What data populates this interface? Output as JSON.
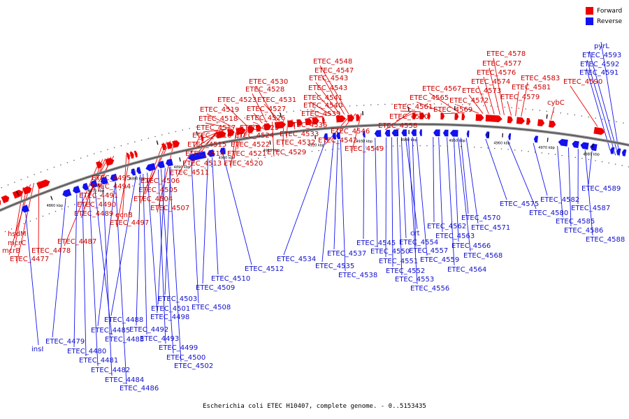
{
  "caption": "Escherichia coli ETEC H10407, complete genome. - 0..5153435",
  "legend": [
    {
      "label": "Forward",
      "color": "#ee0000"
    },
    {
      "label": "Reverse",
      "color": "#1212ee"
    }
  ],
  "ticks": [
    "4860 kbp",
    "4870 kbp",
    "4880 kbp",
    "4890 kbp",
    "4900 kbp",
    "4910 kbp",
    "4920 kbp",
    "4930 kbp",
    "4940 kbp",
    "4950 kbp",
    "4960 kbp",
    "4970 kbp",
    "4980 kbp"
  ],
  "forward_labels": [
    "hsdM",
    "mcrC",
    "mcrB",
    "ETEC_4477",
    "ETEC_4478",
    "ETEC_4487",
    "ETEC_4489",
    "ETEC_4490",
    "ETEC_4491",
    "ETEC_4494",
    "ETEC_4495",
    "ecnB",
    "ETEC_4497",
    "ETEC_4504",
    "ETEC_4505",
    "ETEC_4506",
    "ETEC_4507",
    "ETEC_4511",
    "ETEC_4513",
    "ETEC_4514",
    "ETEC_4515",
    "ETEC_4516",
    "ETEC_4517",
    "ETEC_4518",
    "ETEC_4519",
    "ETEC_4520",
    "ETEC_4521",
    "ETEC_4522",
    "ETEC_4523",
    "ETEC_4524",
    "ETEC_4525",
    "ETEC_4526",
    "ETEC_4527",
    "ETEC_4528",
    "ETEC_4529",
    "ETEC_4530",
    "ETEC_4531",
    "ETEC_4532",
    "ETEC_4533",
    "ETEC_4536",
    "ETEC_4539",
    "ETEC_4540",
    "ETEC_4541",
    "ETEC_4543",
    "ETEC_4543",
    "ETEC_4547",
    "ETEC_4548",
    "ETEC_4542",
    "ETEC_4546",
    "ETEC_4549",
    "ETEC_4558",
    "ETEC_4560",
    "ETEC_4561",
    "ETEC_4565",
    "ETEC_4567",
    "ETEC_4569",
    "ETEC_4572",
    "ETEC_4573",
    "ETEC_4574",
    "ETEC_4576",
    "ETEC_4577",
    "ETEC_4578",
    "ETEC_4579",
    "ETEC_4581",
    "ETEC_4583",
    "cybC",
    "ETEC_4590"
  ],
  "reverse_labels": [
    "insI",
    "ETEC_4479",
    "ETEC_4480",
    "ETEC_4481",
    "ETEC_4482",
    "ETEC_4483",
    "ETEC_4484",
    "ETEC_4485",
    "ETEC_4486",
    "ETEC_4488",
    "ETEC_4492",
    "ETEC_4493",
    "ETEC_4498",
    "ETEC_4499",
    "ETEC_4500",
    "ETEC_4501",
    "ETEC_4502",
    "ETEC_4503",
    "ETEC_4508",
    "ETEC_4509",
    "ETEC_4510",
    "ETEC_4512",
    "ETEC_4534",
    "ETEC_4535",
    "ETEC_4537",
    "ETEC_4538",
    "ETEC_4545",
    "ETEC_4550",
    "ETEC_4551",
    "ETEC_4552",
    "ETEC_4553",
    "ETEC_4554",
    "crt",
    "ETEC_4556",
    "ETEC_4557",
    "ETEC_4559",
    "ETEC_4562",
    "ETEC_4563",
    "ETEC_4564",
    "ETEC_4566",
    "ETEC_4568",
    "ETEC_4570",
    "ETEC_4571",
    "ETEC_4575",
    "ETEC_4580",
    "ETEC_4582",
    "ETEC_4585",
    "ETEC_4586",
    "ETEC_4587",
    "ETEC_4588",
    "ETEC_4589",
    "ETEC_4591",
    "ETEC_4592",
    "ETEC_4593",
    "pyrL"
  ]
}
